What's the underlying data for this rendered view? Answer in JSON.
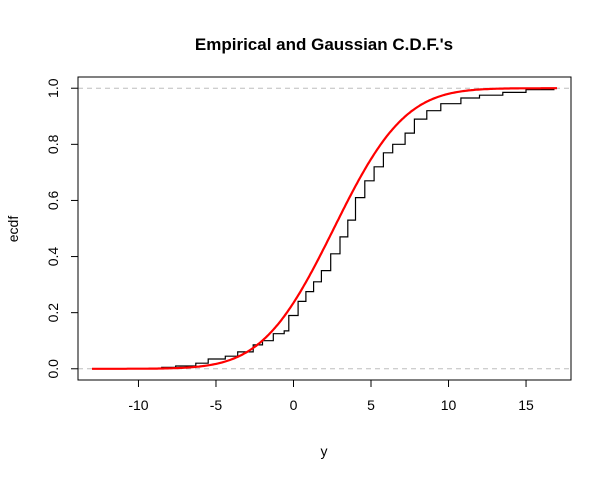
{
  "chart_data": {
    "type": "line",
    "title": "Empirical and Gaussian C.D.F.'s",
    "xlabel": "y",
    "ylabel": "ecdf",
    "xlim": [
      -13.9,
      17.9
    ],
    "ylim": [
      -0.04,
      1.04
    ],
    "x_ticks": [
      -10,
      -5,
      0,
      5,
      10,
      15
    ],
    "y_ticks": [
      0.0,
      0.2,
      0.4,
      0.6,
      0.8,
      1.0
    ],
    "x_tick_labels": [
      "-10",
      "-5",
      "0",
      "5",
      "10",
      "15"
    ],
    "y_tick_labels": [
      "0.0",
      "0.2",
      "0.4",
      "0.6",
      "0.8",
      "1.0"
    ],
    "reference_lines": [
      0,
      1
    ],
    "grid": false,
    "series": [
      {
        "kind": "empirical-step",
        "color": "#000000",
        "x_range": [
          -13,
          17
        ],
        "points": [
          [
            -8.5,
            0.005
          ],
          [
            -7.6,
            0.01
          ],
          [
            -6.3,
            0.02
          ],
          [
            -5.5,
            0.035
          ],
          [
            -4.4,
            0.045
          ],
          [
            -3.6,
            0.06
          ],
          [
            -2.6,
            0.085
          ],
          [
            -2.0,
            0.1
          ],
          [
            -1.3,
            0.125
          ],
          [
            -0.6,
            0.135
          ],
          [
            -0.3,
            0.19
          ],
          [
            0.3,
            0.24
          ],
          [
            0.8,
            0.275
          ],
          [
            1.3,
            0.31
          ],
          [
            1.8,
            0.35
          ],
          [
            2.4,
            0.41
          ],
          [
            3.0,
            0.47
          ],
          [
            3.5,
            0.53
          ],
          [
            4.0,
            0.61
          ],
          [
            4.6,
            0.67
          ],
          [
            5.2,
            0.72
          ],
          [
            5.8,
            0.77
          ],
          [
            6.4,
            0.8
          ],
          [
            7.2,
            0.84
          ],
          [
            7.8,
            0.89
          ],
          [
            8.6,
            0.92
          ],
          [
            9.5,
            0.945
          ],
          [
            10.8,
            0.965
          ],
          [
            12.0,
            0.975
          ],
          [
            13.5,
            0.985
          ],
          [
            15.0,
            0.995
          ],
          [
            16.8,
            1.0
          ]
        ]
      },
      {
        "kind": "gaussian-cdf",
        "color": "#ff0000",
        "mean": 2.6,
        "sd": 3.6,
        "x_range": [
          -13,
          17
        ]
      }
    ]
  }
}
